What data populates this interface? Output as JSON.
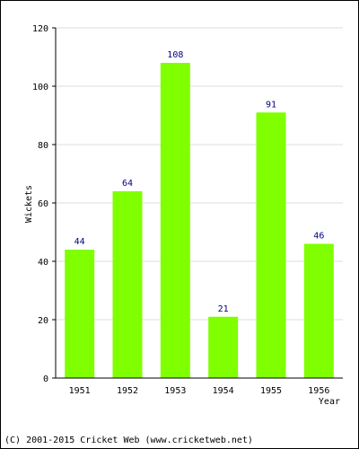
{
  "footer": "(C) 2001-2015 Cricket Web (www.cricketweb.net)",
  "colors": {
    "bar": "#80ff00",
    "data_label": "#000080",
    "grid": "#dddddd",
    "axis": "#000000"
  },
  "chart_data": {
    "type": "bar",
    "categories": [
      "1951",
      "1952",
      "1953",
      "1954",
      "1955",
      "1956"
    ],
    "values": [
      44,
      64,
      108,
      21,
      91,
      46
    ],
    "data_labels": [
      "44",
      "64",
      "108",
      "21",
      "91",
      "46"
    ],
    "title": "",
    "xlabel": "Year",
    "ylabel": "Wickets",
    "ylim": [
      0,
      120
    ],
    "yticks": [
      0,
      20,
      40,
      60,
      80,
      100,
      120
    ],
    "grid": true,
    "legend": "none"
  }
}
